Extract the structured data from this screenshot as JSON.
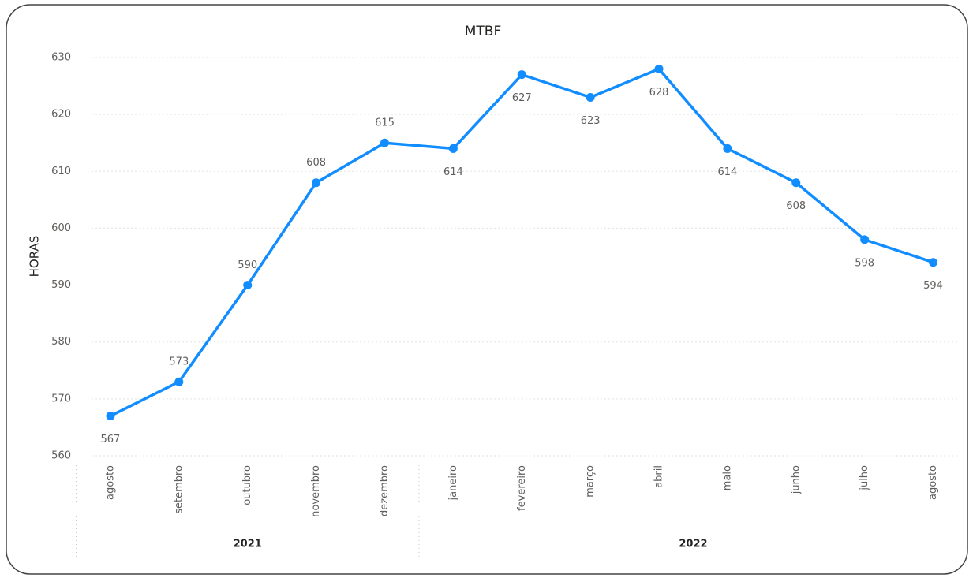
{
  "chart_data": {
    "type": "line",
    "title": "MTBF",
    "y_label": "HORAS",
    "categories": [
      "agosto",
      "setembro",
      "outubro",
      "novembro",
      "dezembro",
      "janeiro",
      "fevereiro",
      "março",
      "abril",
      "maio",
      "junho",
      "julho",
      "agosto"
    ],
    "groups": [
      {
        "label": "2021",
        "size": 5
      },
      {
        "label": "2022",
        "size": 8
      }
    ],
    "series": [
      {
        "name": "MTBF",
        "color": "#118dff",
        "values": [
          567,
          573,
          590,
          608,
          615,
          614,
          627,
          623,
          628,
          614,
          608,
          598,
          594
        ]
      }
    ],
    "ylim": [
      560,
      630
    ],
    "yticks": [
      560,
      570,
      580,
      590,
      600,
      610,
      620,
      630
    ],
    "grid": true
  }
}
